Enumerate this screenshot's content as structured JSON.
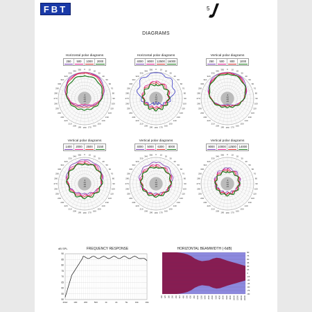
{
  "header": {
    "logo_text": "FBT",
    "series_number": "5",
    "series_letter": "J",
    "page_title": "DIAGRAMS"
  },
  "polar_charts": [
    {
      "title": "Horizontal polar diagrams",
      "legend": [
        {
          "label": "250",
          "color": "#7a3fb5"
        },
        {
          "label": "500",
          "color": "#e0158a"
        },
        {
          "label": "1000",
          "color": "#d42a2a"
        },
        {
          "label": "2000",
          "color": "#1d7a1d"
        }
      ]
    },
    {
      "title": "Horizontal polar diagrams",
      "legend": [
        {
          "label": "4000",
          "color": "#7a3fb5"
        },
        {
          "label": "8000",
          "color": "#e0158a"
        },
        {
          "label": "12500",
          "color": "#d42a2a"
        },
        {
          "label": "16000",
          "color": "#1d7a1d"
        }
      ]
    },
    {
      "title": "Vertical polar diagrams",
      "legend": [
        {
          "label": "250",
          "color": "#7a3fb5"
        },
        {
          "label": "500",
          "color": "#e0158a"
        },
        {
          "label": "800",
          "color": "#d42a2a"
        },
        {
          "label": "1000",
          "color": "#1d7a1d"
        }
      ]
    },
    {
      "title": "Vertical polar diagrams",
      "legend": [
        {
          "label": "1400",
          "color": "#7a3fb5"
        },
        {
          "label": "2000",
          "color": "#e0158a"
        },
        {
          "label": "2500",
          "color": "#d42a2a"
        },
        {
          "label": "3150",
          "color": "#1d7a1d"
        }
      ]
    },
    {
      "title": "Vertical polar diagrams",
      "legend": [
        {
          "label": "4000",
          "color": "#7a3fb5"
        },
        {
          "label": "5000",
          "color": "#e0158a"
        },
        {
          "label": "6300",
          "color": "#d42a2a"
        },
        {
          "label": "8000",
          "color": "#1d7a1d"
        }
      ]
    },
    {
      "title": "Vertical polar diagrams",
      "legend": [
        {
          "label": "9000",
          "color": "#7a3fb5"
        },
        {
          "label": "10000",
          "color": "#e0158a"
        },
        {
          "label": "12500",
          "color": "#d42a2a"
        },
        {
          "label": "14000",
          "color": "#1d7a1d"
        }
      ]
    }
  ],
  "polar_scale_labels": [
    "-6",
    "-12",
    "-18",
    "-24"
  ],
  "frequency_response": {
    "title": "FREQUENCY RESPONSE",
    "ylabel": "dB SPL",
    "y_ticks": [
      "90",
      "85",
      "80",
      "75",
      "70",
      "65",
      "60",
      "55",
      "50"
    ],
    "x_ticks": [
      "40Hz",
      "100",
      "200",
      "500",
      "1k",
      "2k",
      "5k",
      "10k",
      "20k"
    ]
  },
  "beamwidth": {
    "title": "HORIZONTAL BEAMWIDTH (-6dB)",
    "y_ticks": [
      "90",
      "75",
      "60",
      "45",
      "30",
      "15",
      "0",
      "-15",
      "-30",
      "-45",
      "-60",
      "-75",
      "-90"
    ],
    "x_ticks": [
      "100",
      "125",
      "160",
      "200",
      "250",
      "315",
      "400",
      "500",
      "630",
      "800",
      "1000",
      "1250",
      "1600",
      "2000",
      "2500",
      "3150",
      "4000",
      "5000",
      "6300",
      "8000",
      "10000",
      "12500",
      "16000",
      "20000"
    ],
    "colors": {
      "plot": "#8a1c52",
      "outside": "#8f8fe6"
    }
  }
}
